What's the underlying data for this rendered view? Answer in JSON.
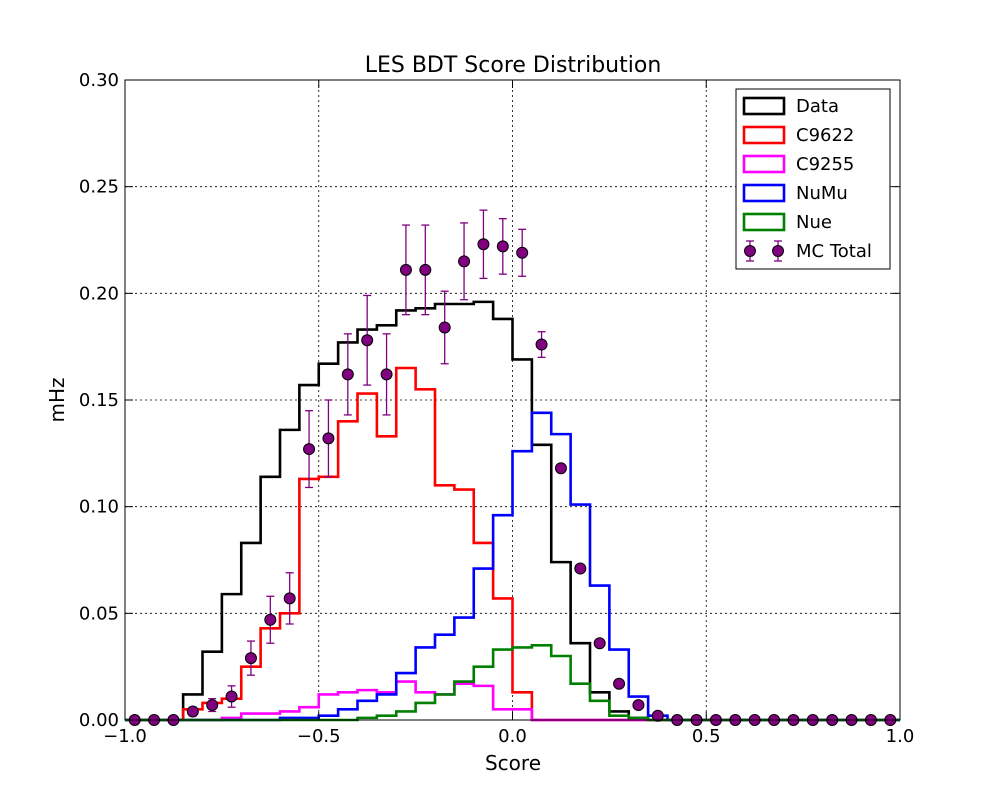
{
  "chart_data": {
    "type": "histogram",
    "title": "LES BDT Score Distribution",
    "xlabel": "Score",
    "ylabel": "mHz",
    "xlim": [
      -1.0,
      1.0
    ],
    "ylim": [
      0.0,
      0.3
    ],
    "grid": true,
    "legend_position": "top-right",
    "x_ticks": [
      "−1.0",
      "−0.5",
      "0.0",
      "0.5",
      "1.0"
    ],
    "y_ticks": [
      "0.00",
      "0.05",
      "0.10",
      "0.15",
      "0.20",
      "0.25",
      "0.30"
    ],
    "bin_edges": [
      -1.0,
      -0.95,
      -0.9,
      -0.85,
      -0.8,
      -0.75,
      -0.7,
      -0.65,
      -0.6,
      -0.55,
      -0.5,
      -0.45,
      -0.4,
      -0.35,
      -0.3,
      -0.25,
      -0.2,
      -0.15,
      -0.1,
      -0.05,
      0.0,
      0.05,
      0.1,
      0.15,
      0.2,
      0.25,
      0.3,
      0.35,
      0.4,
      0.45,
      0.5,
      0.55,
      0.6,
      0.65,
      0.7,
      0.75,
      0.8,
      0.85,
      0.9,
      0.95,
      1.0
    ],
    "series": [
      {
        "name": "Data",
        "color": "#000000",
        "style": "step",
        "values": [
          0,
          0,
          0,
          0.012,
          0.032,
          0.059,
          0.083,
          0.114,
          0.136,
          0.157,
          0.167,
          0.177,
          0.183,
          0.185,
          0.192,
          0.193,
          0.195,
          0.195,
          0.196,
          0.188,
          0.169,
          0.129,
          0.074,
          0.036,
          0.013,
          0.004,
          0.001,
          0,
          0,
          0,
          0,
          0,
          0,
          0,
          0,
          0,
          0,
          0,
          0,
          0
        ]
      },
      {
        "name": "C9622",
        "color": "#ff0000",
        "style": "step",
        "values": [
          0,
          0,
          0,
          0.005,
          0.008,
          0.01,
          0.025,
          0.043,
          0.05,
          0.113,
          0.114,
          0.14,
          0.153,
          0.133,
          0.165,
          0.155,
          0.11,
          0.108,
          0.083,
          0.057,
          0.013,
          0,
          0,
          0,
          0,
          0,
          0,
          0,
          0,
          0,
          0,
          0,
          0,
          0,
          0,
          0,
          0,
          0,
          0,
          0
        ]
      },
      {
        "name": "C9255",
        "color": "#ff00ff",
        "style": "step",
        "values": [
          0,
          0,
          0,
          0,
          0,
          0.001,
          0.003,
          0.003,
          0.004,
          0.006,
          0.012,
          0.013,
          0.014,
          0.013,
          0.018,
          0.013,
          0.012,
          0.017,
          0.016,
          0.005,
          0.005,
          0,
          0,
          0,
          0,
          0,
          0,
          0,
          0,
          0,
          0,
          0,
          0,
          0,
          0,
          0,
          0,
          0,
          0,
          0
        ]
      },
      {
        "name": "NuMu",
        "color": "#0000ff",
        "style": "step",
        "values": [
          0,
          0,
          0,
          0,
          0,
          0,
          0,
          0,
          0.001,
          0.001,
          0.002,
          0.005,
          0.009,
          0.012,
          0.022,
          0.034,
          0.04,
          0.048,
          0.071,
          0.096,
          0.126,
          0.144,
          0.134,
          0.101,
          0.063,
          0.033,
          0.011,
          0.002,
          0,
          0,
          0,
          0,
          0,
          0,
          0,
          0,
          0,
          0,
          0,
          0
        ]
      },
      {
        "name": "Nue",
        "color": "#008000",
        "style": "step",
        "values": [
          0,
          0,
          0,
          0,
          0,
          0,
          0,
          0,
          0,
          0,
          0,
          0,
          0.001,
          0.002,
          0.004,
          0.008,
          0.012,
          0.018,
          0.025,
          0.033,
          0.034,
          0.035,
          0.03,
          0.017,
          0.009,
          0.002,
          0.001,
          0,
          0,
          0,
          0,
          0,
          0,
          0,
          0,
          0,
          0,
          0,
          0,
          0
        ]
      },
      {
        "name": "MC Total",
        "color": "#800080",
        "style": "points",
        "x": [
          -0.975,
          -0.925,
          -0.875,
          -0.825,
          -0.775,
          -0.725,
          -0.675,
          -0.625,
          -0.575,
          -0.525,
          -0.475,
          -0.425,
          -0.375,
          -0.325,
          -0.275,
          -0.225,
          -0.175,
          -0.125,
          -0.075,
          -0.025,
          0.025,
          0.075,
          0.125,
          0.175,
          0.225,
          0.275,
          0.325,
          0.375,
          0.425,
          0.475,
          0.525,
          0.575,
          0.625,
          0.675,
          0.725,
          0.775,
          0.825,
          0.875,
          0.925,
          0.975
        ],
        "values": [
          0,
          0,
          0,
          0.004,
          0.007,
          0.011,
          0.029,
          0.047,
          0.057,
          0.127,
          0.132,
          0.162,
          0.178,
          0.162,
          0.211,
          0.211,
          0.184,
          0.215,
          0.223,
          0.222,
          0.219,
          0.176,
          0.118,
          0.071,
          0.036,
          0.017,
          0.007,
          0.002,
          0,
          0,
          0,
          0,
          0,
          0,
          0,
          0,
          0,
          0,
          0,
          0
        ],
        "errors": [
          0,
          0,
          0,
          0.002,
          0.003,
          0.005,
          0.008,
          0.011,
          0.012,
          0.018,
          0.018,
          0.019,
          0.021,
          0.019,
          0.021,
          0.021,
          0.017,
          0.018,
          0.016,
          0.013,
          0.011,
          0.006,
          0,
          0,
          0,
          0,
          0,
          0,
          0,
          0,
          0,
          0,
          0,
          0,
          0,
          0,
          0,
          0,
          0,
          0
        ]
      }
    ]
  }
}
